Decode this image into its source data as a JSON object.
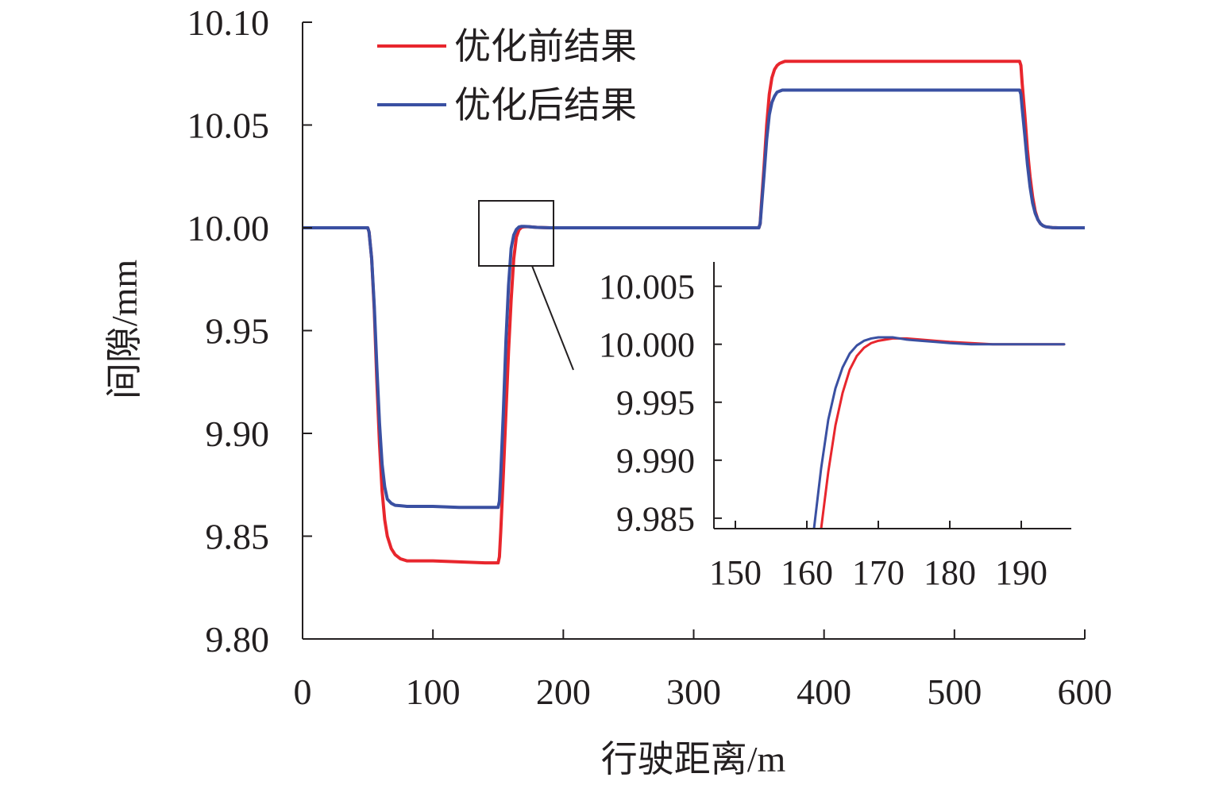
{
  "chart_data": [
    {
      "type": "line",
      "xlabel": "行驶距离/m",
      "ylabel": "间隙/mm",
      "xlim": [
        0,
        600
      ],
      "ylim": [
        9.8,
        10.1
      ],
      "xticks": [
        0,
        100,
        200,
        300,
        400,
        500,
        600
      ],
      "xtick_labels": [
        "0",
        "100",
        "200",
        "300",
        "400",
        "500",
        "600"
      ],
      "yticks": [
        9.8,
        9.85,
        9.9,
        9.95,
        10.0,
        10.05,
        10.1
      ],
      "ytick_labels": [
        "9.80",
        "9.85",
        "9.90",
        "9.95",
        "10.00",
        "10.05",
        "10.10"
      ],
      "grid": false,
      "legend": "top-left",
      "series": [
        {
          "name": "优化前结果",
          "color": "#e8262d",
          "x": [
            0,
            50,
            51,
            53,
            55,
            57,
            59,
            61,
            63,
            65,
            68,
            71,
            75,
            80,
            90,
            100,
            120,
            140,
            150,
            151,
            152,
            154,
            156,
            158,
            160,
            162,
            164,
            166,
            168,
            170,
            173,
            176,
            180,
            190,
            200,
            250,
            300,
            350,
            351,
            352,
            354,
            356,
            358,
            360,
            362,
            364,
            366,
            368,
            370,
            373,
            376,
            380,
            400,
            450,
            500,
            550,
            551,
            552,
            554,
            556,
            558,
            560,
            562,
            564,
            566,
            568,
            570,
            575,
            580,
            600
          ],
          "y": [
            10.0,
            10.0,
            9.998,
            9.985,
            9.96,
            9.925,
            9.895,
            9.872,
            9.858,
            9.85,
            9.844,
            9.841,
            9.839,
            9.838,
            9.838,
            9.838,
            9.8375,
            9.837,
            9.837,
            9.84,
            9.852,
            9.88,
            9.91,
            9.94,
            9.965,
            9.985,
            9.9955,
            9.999,
            10.0002,
            10.0005,
            10.0006,
            10.0004,
            10.0002,
            10.0,
            10.0,
            10.0,
            10.0,
            10.0,
            10.002,
            10.012,
            10.03,
            10.05,
            10.065,
            10.073,
            10.077,
            10.079,
            10.08,
            10.0805,
            10.081,
            10.081,
            10.081,
            10.081,
            10.081,
            10.081,
            10.081,
            10.081,
            10.079,
            10.07,
            10.055,
            10.038,
            10.025,
            10.015,
            10.008,
            10.004,
            10.002,
            10.001,
            10.0005,
            10.0001,
            10.0,
            10.0
          ]
        },
        {
          "name": "优化后结果",
          "color": "#3a50a2",
          "x": [
            0,
            50,
            51,
            53,
            55,
            57,
            59,
            61,
            63,
            65,
            68,
            71,
            75,
            80,
            90,
            100,
            120,
            140,
            150,
            151,
            152,
            154,
            156,
            158,
            160,
            162,
            164,
            166,
            168,
            170,
            173,
            176,
            180,
            190,
            200,
            250,
            300,
            350,
            351,
            352,
            354,
            356,
            358,
            360,
            362,
            364,
            366,
            368,
            370,
            373,
            376,
            380,
            400,
            450,
            500,
            550,
            551,
            552,
            554,
            556,
            558,
            560,
            562,
            564,
            566,
            568,
            570,
            575,
            580,
            600
          ],
          "y": [
            10.0,
            10.0,
            9.998,
            9.985,
            9.962,
            9.932,
            9.905,
            9.885,
            9.874,
            9.868,
            9.866,
            9.865,
            9.8648,
            9.8645,
            9.8645,
            9.8645,
            9.864,
            9.864,
            9.864,
            9.867,
            9.88,
            9.91,
            9.945,
            9.972,
            9.99,
            9.9965,
            9.9992,
            10.0004,
            10.0007,
            10.0007,
            10.0006,
            10.0004,
            10.0002,
            10.0,
            10.0,
            10.0,
            10.0,
            10.0,
            10.002,
            10.01,
            10.026,
            10.043,
            10.055,
            10.061,
            10.064,
            10.066,
            10.0665,
            10.067,
            10.067,
            10.067,
            10.067,
            10.067,
            10.067,
            10.067,
            10.067,
            10.067,
            10.065,
            10.058,
            10.045,
            10.031,
            10.02,
            10.012,
            10.007,
            10.004,
            10.002,
            10.001,
            10.0005,
            10.0001,
            10.0,
            10.0
          ]
        }
      ]
    },
    {
      "type": "line",
      "inset": true,
      "xlim": [
        147,
        197
      ],
      "ylim": [
        9.9841,
        10.0071
      ],
      "xticks": [
        150,
        160,
        170,
        180,
        190
      ],
      "xtick_labels": [
        "150",
        "160",
        "170",
        "180",
        "190"
      ],
      "yticks": [
        9.985,
        9.99,
        9.995,
        10.0,
        10.005
      ],
      "ytick_labels": [
        "9.985",
        "9.990",
        "9.995",
        "10.000",
        "10.005"
      ],
      "grid": false,
      "series": [
        {
          "color": "#e8262d",
          "x": [
            162,
            163,
            164,
            165,
            166,
            167,
            168,
            169,
            170,
            171,
            172,
            173,
            174,
            176,
            178,
            180,
            183,
            186,
            190,
            196
          ],
          "y": [
            9.9841,
            9.989,
            9.993,
            9.9958,
            9.9978,
            9.999,
            9.9997,
            10.0001,
            10.0003,
            10.0004,
            10.0005,
            10.0005,
            10.0005,
            10.0004,
            10.0003,
            10.0002,
            10.0001,
            10.0,
            10.0,
            10.0
          ]
        },
        {
          "color": "#3a50a2",
          "x": [
            161,
            162,
            163,
            164,
            165,
            166,
            167,
            168,
            169,
            170,
            171,
            172,
            173,
            174,
            176,
            178,
            180,
            183,
            186,
            190,
            196
          ],
          "y": [
            9.9841,
            9.9893,
            9.9935,
            9.9962,
            9.998,
            9.9992,
            9.9999,
            10.0003,
            10.0005,
            10.0006,
            10.0006,
            10.0006,
            10.0005,
            10.0004,
            10.0003,
            10.0002,
            10.0001,
            10.0,
            10.0,
            10.0,
            10.0
          ]
        }
      ]
    }
  ]
}
